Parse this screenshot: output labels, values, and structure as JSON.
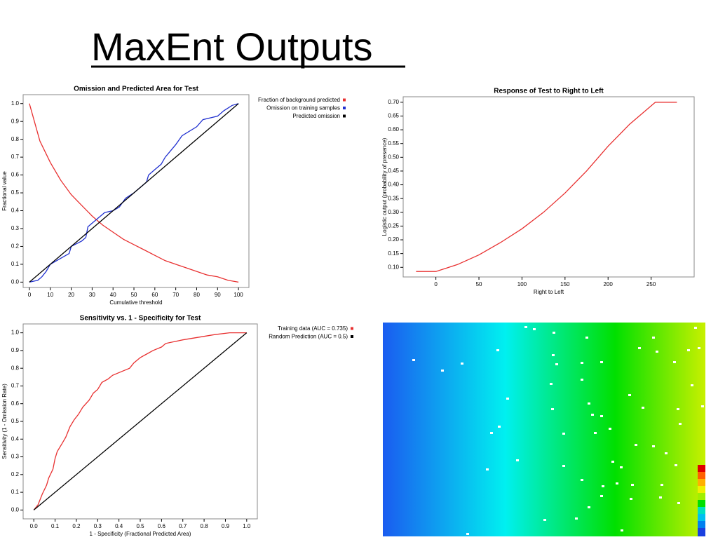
{
  "title": "MaxEnt Outputs",
  "chart_data": [
    {
      "type": "line",
      "title": "Omission and Predicted Area for Test",
      "x_label": "Cumulative threshold",
      "y_label": "Fractional value",
      "xlim": [
        -3,
        105
      ],
      "ylim": [
        -0.03,
        1.05
      ],
      "xticks": [
        0,
        10,
        20,
        30,
        40,
        50,
        60,
        70,
        80,
        90,
        100
      ],
      "yticks": [
        {
          "value": 0,
          "label": "0.0"
        },
        0.1,
        0.2,
        0.3,
        0.4,
        0.5,
        0.6,
        0.7,
        0.8,
        0.9,
        {
          "value": 1,
          "label": "1.0"
        }
      ],
      "series": [
        {
          "name": "Fraction of background predicted",
          "color": "#e83030",
          "x": [
            0,
            5,
            10,
            15,
            20,
            25,
            30,
            35,
            40,
            45,
            50,
            55,
            60,
            65,
            70,
            75,
            80,
            85,
            90,
            95,
            100
          ],
          "values": [
            1.0,
            0.79,
            0.67,
            0.57,
            0.49,
            0.43,
            0.37,
            0.32,
            0.28,
            0.24,
            0.21,
            0.18,
            0.15,
            0.12,
            0.1,
            0.08,
            0.06,
            0.04,
            0.03,
            0.01,
            0.0
          ]
        },
        {
          "name": "Omission on training samples",
          "color": "#2030d0",
          "x": [
            0,
            4,
            6,
            8,
            10,
            13,
            16,
            19,
            20,
            25,
            27,
            28,
            30,
            33,
            36,
            40,
            43,
            46,
            50,
            53,
            56,
            57,
            60,
            63,
            65,
            70,
            73,
            80,
            83,
            90,
            93,
            97,
            100
          ],
          "values": [
            0,
            0.01,
            0.03,
            0.06,
            0.1,
            0.12,
            0.14,
            0.16,
            0.2,
            0.23,
            0.25,
            0.31,
            0.33,
            0.36,
            0.39,
            0.4,
            0.42,
            0.47,
            0.5,
            0.53,
            0.56,
            0.6,
            0.63,
            0.66,
            0.7,
            0.77,
            0.82,
            0.87,
            0.91,
            0.93,
            0.96,
            0.99,
            1.0
          ]
        },
        {
          "name": "Predicted omission",
          "color": "#000000",
          "x": [
            0,
            100
          ],
          "values": [
            0,
            1
          ]
        }
      ]
    },
    {
      "type": "line",
      "title": "Response of Test to Right to Left",
      "x_label": "Right to Left",
      "y_label": "Logistic output (probability of presence)",
      "xlim": [
        -38,
        300
      ],
      "ylim": [
        0.065,
        0.72
      ],
      "xticks": [
        0,
        50,
        100,
        150,
        200,
        250
      ],
      "yticks": [
        {
          "value": 0.1,
          "label": "0.10"
        },
        0.15,
        {
          "value": 0.2,
          "label": "0.20"
        },
        0.25,
        {
          "value": 0.3,
          "label": "0.30"
        },
        0.35,
        {
          "value": 0.4,
          "label": "0.40"
        },
        0.45,
        {
          "value": 0.5,
          "label": "0.50"
        },
        0.55,
        {
          "value": 0.6,
          "label": "0.60"
        },
        0.65,
        {
          "value": 0.7,
          "label": "0.70"
        }
      ],
      "series": [
        {
          "color": "#e83030",
          "x": [
            -23,
            0,
            25,
            50,
            75,
            100,
            125,
            150,
            175,
            200,
            225,
            255,
            280
          ],
          "values": [
            0.085,
            0.085,
            0.11,
            0.145,
            0.19,
            0.24,
            0.3,
            0.37,
            0.45,
            0.54,
            0.62,
            0.7,
            0.7
          ]
        }
      ]
    },
    {
      "type": "line",
      "title": "Sensitivity vs. 1 - Specificity for Test",
      "x_label": "1 - Specificity  (Fractional Predicted Area)",
      "y_label": "Sensitivity  (1 - Omission Rate)",
      "xlim": [
        -0.05,
        1.05
      ],
      "ylim": [
        -0.05,
        1.05
      ],
      "xticks": [
        {
          "value": 0,
          "label": "0.0"
        },
        0.1,
        0.2,
        0.3,
        0.4,
        0.5,
        0.6,
        0.7,
        0.8,
        0.9,
        {
          "value": 1,
          "label": "1.0"
        }
      ],
      "yticks": [
        {
          "value": 0,
          "label": "0.0"
        },
        0.1,
        0.2,
        0.3,
        0.4,
        0.5,
        0.6,
        0.7,
        0.8,
        0.9,
        {
          "value": 1,
          "label": "1.0"
        }
      ],
      "series": [
        {
          "name": "Training data (AUC = 0.735)",
          "color": "#e83030",
          "x": [
            0,
            0.02,
            0.03,
            0.04,
            0.06,
            0.07,
            0.09,
            0.1,
            0.11,
            0.13,
            0.15,
            0.17,
            0.19,
            0.21,
            0.23,
            0.26,
            0.28,
            0.3,
            0.32,
            0.35,
            0.37,
            0.41,
            0.45,
            0.47,
            0.5,
            0.53,
            0.56,
            0.6,
            0.62,
            0.66,
            0.7,
            0.75,
            0.8,
            0.85,
            0.92,
            1.0
          ],
          "values": [
            0,
            0.03,
            0.06,
            0.09,
            0.14,
            0.18,
            0.23,
            0.29,
            0.33,
            0.37,
            0.41,
            0.47,
            0.51,
            0.54,
            0.58,
            0.62,
            0.66,
            0.68,
            0.72,
            0.74,
            0.76,
            0.78,
            0.8,
            0.83,
            0.86,
            0.88,
            0.9,
            0.92,
            0.94,
            0.95,
            0.96,
            0.97,
            0.98,
            0.99,
            1.0,
            1.0
          ]
        },
        {
          "name": "Random Prediction (AUC = 0.5)",
          "color": "#000000",
          "x": [
            0,
            1
          ],
          "values": [
            0,
            1
          ]
        }
      ]
    }
  ]
}
